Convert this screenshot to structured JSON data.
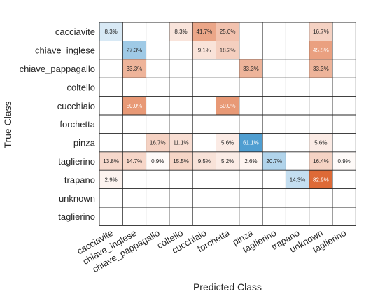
{
  "chart_data": {
    "type": "heatmap",
    "xlabel": "Predicted Class",
    "ylabel": "True Class",
    "row_labels": [
      "cacciavite",
      "chiave_inglese",
      "chiave_pappagallo",
      "coltello",
      "cucchiaio",
      "forchetta",
      "pinza",
      "taglierino",
      "trapano",
      "unknown",
      "taglierino"
    ],
    "col_labels": [
      "cacciavite",
      "chiave_inglese",
      "chiave_pappagallo",
      "coltello",
      "cucchiaio",
      "forchetta",
      "pinza",
      "taglierino",
      "trapano",
      "unknown",
      "taglierino"
    ],
    "cells": [
      {
        "row": 0,
        "col": 0,
        "value": 8.3,
        "label": "8.3%",
        "tone": "blue"
      },
      {
        "row": 0,
        "col": 3,
        "value": 8.3,
        "label": "8.3%",
        "tone": "orange"
      },
      {
        "row": 0,
        "col": 4,
        "value": 41.7,
        "label": "41.7%",
        "tone": "orange"
      },
      {
        "row": 0,
        "col": 5,
        "value": 25.0,
        "label": "25.0%",
        "tone": "orange"
      },
      {
        "row": 0,
        "col": 9,
        "value": 16.7,
        "label": "16.7%",
        "tone": "orange"
      },
      {
        "row": 1,
        "col": 1,
        "value": 27.3,
        "label": "27.3%",
        "tone": "blue"
      },
      {
        "row": 1,
        "col": 4,
        "value": 9.1,
        "label": "9.1%",
        "tone": "orange"
      },
      {
        "row": 1,
        "col": 5,
        "value": 18.2,
        "label": "18.2%",
        "tone": "orange"
      },
      {
        "row": 1,
        "col": 9,
        "value": 45.5,
        "label": "45.5%",
        "tone": "orange"
      },
      {
        "row": 2,
        "col": 1,
        "value": 33.3,
        "label": "33.3%",
        "tone": "orange"
      },
      {
        "row": 2,
        "col": 6,
        "value": 33.3,
        "label": "33.3%",
        "tone": "orange"
      },
      {
        "row": 2,
        "col": 9,
        "value": 33.3,
        "label": "33.3%",
        "tone": "orange"
      },
      {
        "row": 4,
        "col": 1,
        "value": 50.0,
        "label": "50.0%",
        "tone": "orange"
      },
      {
        "row": 4,
        "col": 5,
        "value": 50.0,
        "label": "50.0%",
        "tone": "orange"
      },
      {
        "row": 6,
        "col": 2,
        "value": 16.7,
        "label": "16.7%",
        "tone": "orange"
      },
      {
        "row": 6,
        "col": 3,
        "value": 11.1,
        "label": "11.1%",
        "tone": "orange"
      },
      {
        "row": 6,
        "col": 5,
        "value": 5.6,
        "label": "5.6%",
        "tone": "orange"
      },
      {
        "row": 6,
        "col": 6,
        "value": 61.1,
        "label": "61.1%",
        "tone": "blue"
      },
      {
        "row": 6,
        "col": 9,
        "value": 5.6,
        "label": "5.6%",
        "tone": "orange"
      },
      {
        "row": 7,
        "col": 0,
        "value": 13.8,
        "label": "13.8%",
        "tone": "orange"
      },
      {
        "row": 7,
        "col": 1,
        "value": 14.7,
        "label": "14.7%",
        "tone": "orange"
      },
      {
        "row": 7,
        "col": 2,
        "value": 0.9,
        "label": "0.9%",
        "tone": "orange"
      },
      {
        "row": 7,
        "col": 3,
        "value": 15.5,
        "label": "15.5%",
        "tone": "orange"
      },
      {
        "row": 7,
        "col": 4,
        "value": 9.5,
        "label": "9.5%",
        "tone": "orange"
      },
      {
        "row": 7,
        "col": 5,
        "value": 5.2,
        "label": "5.2%",
        "tone": "orange"
      },
      {
        "row": 7,
        "col": 6,
        "value": 2.6,
        "label": "2.6%",
        "tone": "orange"
      },
      {
        "row": 7,
        "col": 7,
        "value": 20.7,
        "label": "20.7%",
        "tone": "blue"
      },
      {
        "row": 7,
        "col": 9,
        "value": 16.4,
        "label": "16.4%",
        "tone": "orange"
      },
      {
        "row": 7,
        "col": 10,
        "value": 0.9,
        "label": "0.9%",
        "tone": "orange"
      },
      {
        "row": 8,
        "col": 0,
        "value": 2.9,
        "label": "2.9%",
        "tone": "orange"
      },
      {
        "row": 8,
        "col": 8,
        "value": 14.3,
        "label": "14.3%",
        "tone": "blue"
      },
      {
        "row": 8,
        "col": 9,
        "value": 82.9,
        "label": "82.9%",
        "tone": "orange"
      }
    ],
    "colors": {
      "blue_max": "#0072bd",
      "orange_max": "#d95319",
      "grid": "#262626",
      "text": "#262626"
    }
  }
}
